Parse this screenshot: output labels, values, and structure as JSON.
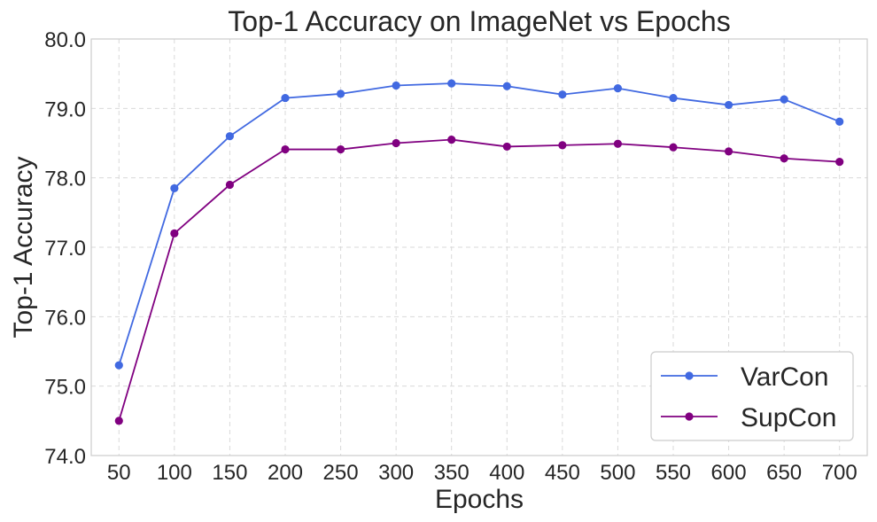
{
  "chart_data": {
    "type": "line",
    "title": "Top-1 Accuracy on ImageNet vs Epochs",
    "xlabel": "Epochs",
    "ylabel": "Top-1 Accuracy",
    "x": [
      50,
      100,
      150,
      200,
      250,
      300,
      350,
      400,
      450,
      500,
      550,
      600,
      650,
      700
    ],
    "x_tick_labels": [
      "50",
      "100",
      "150",
      "200",
      "250",
      "300",
      "350",
      "400",
      "450",
      "500",
      "550",
      "600",
      "650",
      "700"
    ],
    "ylim": [
      74.0,
      80.0
    ],
    "y_ticks": [
      74.0,
      75.0,
      76.0,
      77.0,
      78.0,
      79.0,
      80.0
    ],
    "y_tick_labels": [
      "74.0",
      "75.0",
      "76.0",
      "77.0",
      "78.0",
      "79.0",
      "80.0"
    ],
    "grid": true,
    "legend_position": "bottom-right",
    "series": [
      {
        "name": "VarCon",
        "color": "#4169e1",
        "marker": "circle",
        "values": [
          75.3,
          77.85,
          78.6,
          79.15,
          79.21,
          79.33,
          79.36,
          79.32,
          79.2,
          79.29,
          79.15,
          79.05,
          79.13,
          78.81
        ]
      },
      {
        "name": "SupCon",
        "color": "#800080",
        "marker": "circle",
        "values": [
          74.5,
          77.2,
          77.9,
          78.41,
          78.41,
          78.5,
          78.55,
          78.45,
          78.47,
          78.49,
          78.44,
          78.38,
          78.28,
          78.23
        ]
      }
    ]
  }
}
